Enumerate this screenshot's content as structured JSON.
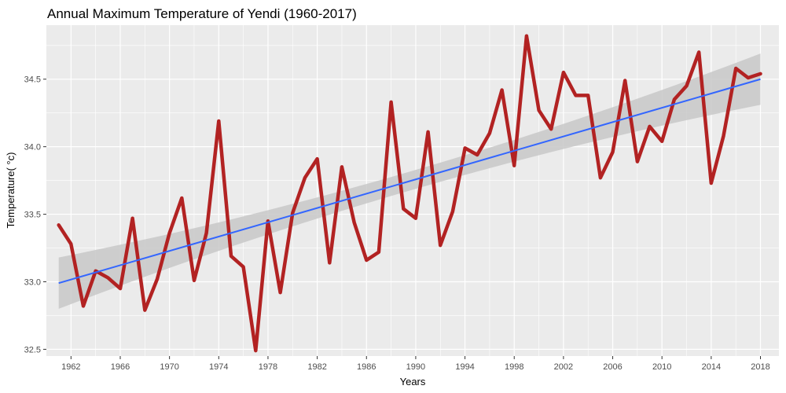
{
  "chart_data": {
    "type": "line",
    "title": "Annual Maximum Temperature  of Yendi (1960-2017)",
    "xlabel": "Years",
    "ylabel": "Temperature( °c)",
    "xlim": [
      1960,
      2019.5
    ],
    "ylim": [
      32.45,
      34.9
    ],
    "x_ticks": [
      1962,
      1966,
      1970,
      1974,
      1978,
      1982,
      1986,
      1990,
      1994,
      1998,
      2002,
      2006,
      2010,
      2014,
      2018
    ],
    "y_ticks": [
      32.5,
      33.0,
      33.5,
      34.0,
      34.5
    ],
    "y_tick_labels": [
      "32.5",
      "33.0",
      "33.5",
      "34.0",
      "34.5"
    ],
    "grid": true,
    "colors": {
      "panel": "#ebebeb",
      "grid": "#ffffff",
      "series": "#b22222",
      "trend": "#3366ff",
      "band": "#c8c8c8"
    },
    "series": [
      {
        "x": [
          1961,
          1962,
          1963,
          1964,
          1965,
          1966,
          1967,
          1968,
          1969,
          1970,
          1971,
          1972,
          1973,
          1974,
          1975,
          1976,
          1977,
          1978,
          1979,
          1980,
          1981,
          1982,
          1983,
          1984,
          1985,
          1986,
          1987,
          1988,
          1989,
          1990,
          1991,
          1992,
          1993,
          1994,
          1995,
          1996,
          1997,
          1998,
          1999,
          2000,
          2001,
          2002,
          2003,
          2004,
          2005,
          2006,
          2007,
          2008,
          2009,
          2010,
          2011,
          2012,
          2013,
          2014,
          2015,
          2016,
          2017,
          2018
        ],
        "values": [
          33.42,
          33.28,
          32.82,
          33.08,
          33.03,
          32.95,
          33.47,
          32.79,
          33.02,
          33.36,
          33.62,
          33.01,
          33.36,
          34.19,
          33.19,
          33.11,
          32.49,
          33.45,
          32.92,
          33.51,
          33.77,
          33.91,
          33.14,
          33.85,
          33.44,
          33.16,
          33.22,
          34.33,
          33.54,
          33.47,
          34.11,
          33.27,
          33.52,
          33.99,
          33.94,
          34.1,
          34.42,
          33.86,
          34.82,
          34.27,
          34.13,
          34.55,
          34.38,
          34.38,
          33.77,
          33.96,
          34.49,
          33.89,
          34.15,
          34.04,
          34.35,
          34.45,
          34.7,
          33.73,
          34.08,
          34.58,
          34.51,
          34.54
        ]
      }
    ],
    "trend": {
      "x": [
        1961,
        2018
      ],
      "y": [
        32.99,
        34.5
      ],
      "band_half_width_ends": 0.19,
      "band_half_width_mid": 0.07
    }
  }
}
